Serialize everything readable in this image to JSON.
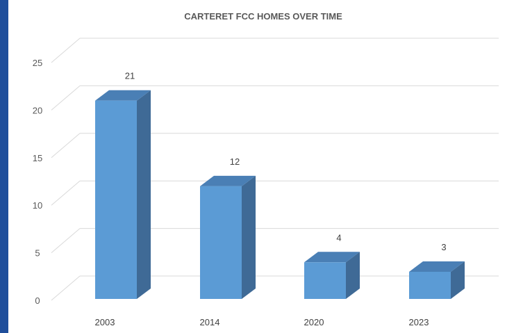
{
  "chart_data": {
    "type": "bar",
    "title": "CARTERET FCC HOMES OVER TIME",
    "categories": [
      "2003",
      "2014",
      "2020",
      "2023"
    ],
    "values": [
      21,
      12,
      4,
      3
    ],
    "ylim": [
      0,
      25
    ],
    "yticks": [
      "0",
      "5",
      "10",
      "15",
      "20",
      "25"
    ],
    "xlabel": "",
    "ylabel": "",
    "grid": true,
    "style": "3d-column",
    "colors": {
      "front": "#5b9bd5",
      "top": "#4a7fb5",
      "side": "#3f6a96",
      "grid": "#d9d9d9",
      "frame_border": "#1f4e9b"
    }
  }
}
